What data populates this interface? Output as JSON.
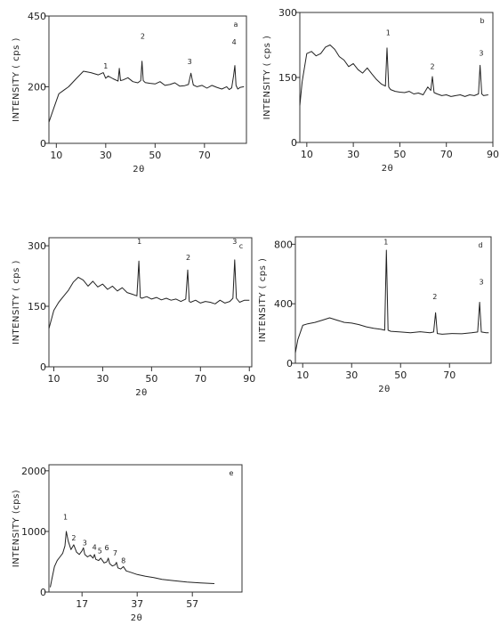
{
  "chart_data": [
    {
      "panel": "a",
      "type": "line",
      "xlabel": "2θ",
      "ylabel": "INTENSITY ( cps )",
      "xlim": [
        7,
        87
      ],
      "ylim": [
        0,
        450
      ],
      "xticks": [
        10,
        30,
        50,
        70
      ],
      "yticks": [
        0,
        200,
        450
      ],
      "peak_labels": [
        {
          "label": "1",
          "x": 30,
          "y": 265
        },
        {
          "label": "2",
          "x": 45,
          "y": 370
        },
        {
          "label": "3",
          "x": 64,
          "y": 280
        },
        {
          "label": "4",
          "x": 82,
          "y": 350
        }
      ],
      "x": [
        7,
        9,
        11,
        13,
        15,
        18,
        21,
        24,
        27,
        29,
        30,
        31,
        33,
        35,
        35.5,
        36,
        37,
        39,
        41,
        43,
        44.2,
        44.7,
        45.2,
        46,
        48,
        50,
        52,
        54,
        56,
        58,
        60,
        62,
        63.5,
        64.5,
        65.5,
        67,
        69,
        71,
        73,
        75,
        77,
        79,
        80,
        81,
        81.8,
        82.3,
        82.8,
        83.5,
        84.5,
        86
      ],
      "y": [
        75,
        125,
        175,
        188,
        200,
        228,
        255,
        250,
        242,
        250,
        230,
        238,
        228,
        220,
        265,
        222,
        224,
        232,
        218,
        214,
        222,
        290,
        222,
        215,
        212,
        210,
        218,
        205,
        208,
        214,
        202,
        204,
        208,
        248,
        206,
        200,
        205,
        195,
        205,
        198,
        192,
        200,
        190,
        196,
        240,
        275,
        205,
        192,
        198,
        200
      ]
    },
    {
      "panel": "b",
      "type": "line",
      "xlabel": "2θ",
      "ylabel": "INTENSITY ( cps )",
      "xlim": [
        7,
        90
      ],
      "ylim": [
        0,
        300
      ],
      "xticks": [
        10,
        30,
        50,
        70,
        90
      ],
      "yticks": [
        0,
        150,
        300
      ],
      "peak_labels": [
        {
          "label": "1",
          "x": 45,
          "y": 248
        },
        {
          "label": "2",
          "x": 64,
          "y": 170
        },
        {
          "label": "3",
          "x": 85,
          "y": 200
        }
      ],
      "x": [
        7,
        8,
        10,
        12,
        14,
        16,
        18,
        20,
        22,
        24,
        26,
        28,
        30,
        32,
        34,
        36,
        38,
        40,
        42,
        43.8,
        44.5,
        45.2,
        46,
        48,
        50,
        52,
        54,
        56,
        58,
        60,
        62,
        63.3,
        64,
        64.7,
        66,
        68,
        70,
        72,
        74,
        76,
        78,
        80,
        82,
        83.8,
        84.5,
        85.2,
        86,
        88
      ],
      "y": [
        85,
        140,
        205,
        210,
        200,
        205,
        220,
        225,
        215,
        198,
        190,
        175,
        182,
        168,
        160,
        172,
        158,
        145,
        135,
        130,
        218,
        128,
        122,
        118,
        116,
        115,
        118,
        112,
        114,
        110,
        128,
        120,
        152,
        115,
        112,
        108,
        110,
        106,
        108,
        110,
        106,
        110,
        108,
        112,
        178,
        112,
        108,
        110
      ]
    },
    {
      "panel": "c",
      "type": "line",
      "xlabel": "2θ",
      "ylabel": "INTENSITY ( cps )",
      "xlim": [
        8,
        91
      ],
      "ylim": [
        0,
        320
      ],
      "xticks": [
        10,
        30,
        50,
        70,
        90
      ],
      "yticks": [
        0,
        150,
        300
      ],
      "peak_labels": [
        {
          "label": "1",
          "x": 45,
          "y": 305
        },
        {
          "label": "2",
          "x": 65,
          "y": 265
        },
        {
          "label": "3",
          "x": 84,
          "y": 305
        }
      ],
      "x": [
        8,
        10,
        12,
        14,
        16,
        18,
        20,
        22,
        24,
        26,
        28,
        30,
        32,
        34,
        36,
        38,
        40,
        42,
        44,
        44.8,
        45.4,
        46,
        48,
        50,
        52,
        54,
        56,
        58,
        60,
        62,
        64,
        64.8,
        65.4,
        66,
        68,
        70,
        72,
        74,
        76,
        78,
        80,
        82,
        83.3,
        84,
        84.7,
        86,
        88,
        90
      ],
      "y": [
        95,
        140,
        160,
        175,
        190,
        210,
        222,
        215,
        200,
        212,
        198,
        205,
        192,
        200,
        188,
        196,
        184,
        180,
        176,
        262,
        172,
        170,
        174,
        168,
        172,
        166,
        170,
        165,
        168,
        162,
        168,
        240,
        162,
        160,
        165,
        158,
        162,
        160,
        156,
        165,
        158,
        162,
        170,
        265,
        170,
        160,
        165,
        165
      ]
    },
    {
      "panel": "d",
      "type": "line",
      "xlabel": "2θ",
      "ylabel": "INTENSITY ( cps )",
      "xlim": [
        7,
        87
      ],
      "ylim": [
        0,
        850
      ],
      "xticks": [
        10,
        30,
        50,
        70
      ],
      "yticks": [
        0,
        400,
        800
      ],
      "peak_labels": [
        {
          "label": "1",
          "x": 44,
          "y": 800
        },
        {
          "label": "2",
          "x": 64,
          "y": 430
        },
        {
          "label": "3",
          "x": 83,
          "y": 530
        }
      ],
      "x": [
        7,
        8,
        10,
        12,
        15,
        18,
        21,
        24,
        27,
        30,
        33,
        36,
        39,
        42,
        43.5,
        44.2,
        44.9,
        46,
        50,
        54,
        58,
        62,
        63.5,
        64.3,
        65,
        67,
        71,
        75,
        79,
        81.5,
        82.3,
        83,
        85,
        86
      ],
      "y": [
        70,
        160,
        255,
        265,
        275,
        290,
        305,
        290,
        275,
        270,
        260,
        245,
        235,
        228,
        222,
        760,
        222,
        215,
        210,
        205,
        212,
        205,
        210,
        340,
        200,
        195,
        200,
        198,
        205,
        210,
        410,
        210,
        205,
        205
      ]
    },
    {
      "panel": "e",
      "type": "line",
      "xlabel": "2θ",
      "ylabel": "INTENSITY (cps)",
      "xlim": [
        5,
        75
      ],
      "ylim": [
        0,
        2100
      ],
      "xticks": [
        17,
        37,
        57
      ],
      "yticks": [
        0,
        1000,
        2000
      ],
      "peak_labels": [
        {
          "label": "1",
          "x": 11,
          "y": 1200
        },
        {
          "label": "2",
          "x": 14,
          "y": 850
        },
        {
          "label": "3",
          "x": 18,
          "y": 770
        },
        {
          "label": "4",
          "x": 21.5,
          "y": 700
        },
        {
          "label": "5",
          "x": 23.5,
          "y": 640
        },
        {
          "label": "6",
          "x": 26,
          "y": 690
        },
        {
          "label": "7",
          "x": 29,
          "y": 600
        },
        {
          "label": "8",
          "x": 32,
          "y": 480
        }
      ],
      "x": [
        5.5,
        6,
        7,
        8,
        9,
        10,
        10.8,
        11.3,
        12,
        13,
        14,
        15,
        16,
        17,
        17.5,
        18,
        19,
        20,
        21,
        21.5,
        22,
        23,
        23.8,
        25,
        26,
        26.5,
        27,
        28,
        29,
        29.5,
        30,
        31,
        32,
        33,
        35,
        37,
        40,
        43,
        46,
        50,
        55,
        60,
        65
      ],
      "y": [
        80,
        200,
        420,
        520,
        580,
        640,
        760,
        1000,
        840,
        700,
        780,
        660,
        620,
        680,
        730,
        620,
        580,
        610,
        560,
        620,
        540,
        520,
        560,
        480,
        500,
        560,
        470,
        430,
        450,
        490,
        400,
        380,
        420,
        350,
        320,
        290,
        260,
        240,
        210,
        190,
        165,
        150,
        140
      ]
    }
  ]
}
